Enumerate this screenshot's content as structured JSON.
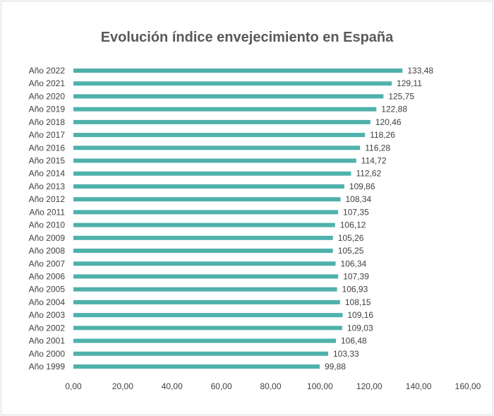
{
  "chart_data": {
    "type": "bar",
    "orientation": "horizontal",
    "title": "Evolución índice envejecimiento en España",
    "categories": [
      "Año 1999",
      "Año 2000",
      "Año 2001",
      "Año 2002",
      "Año 2003",
      "Año 2004",
      "Año 2005",
      "Año 2006",
      "Año 2007",
      "Año 2008",
      "Año 2009",
      "Año 2010",
      "Año 2011",
      "Año 2012",
      "Año 2013",
      "Año 2014",
      "Año 2015",
      "Año 2016",
      "Año 2017",
      "Año 2018",
      "Año 2019",
      "Año 2020",
      "Año 2021",
      "Año 2022"
    ],
    "values": [
      99.88,
      103.33,
      106.48,
      109.03,
      109.16,
      108.15,
      106.93,
      107.39,
      106.34,
      105.25,
      105.26,
      106.12,
      107.35,
      108.34,
      109.86,
      112.62,
      114.72,
      116.28,
      118.26,
      120.46,
      122.88,
      125.75,
      129.11,
      133.48
    ],
    "data_labels": [
      "99,88",
      "103,33",
      "106,48",
      "109,03",
      "109,16",
      "108,15",
      "106,93",
      "107,39",
      "106,34",
      "105,25",
      "105,26",
      "106,12",
      "107,35",
      "108,34",
      "109,86",
      "112,62",
      "114,72",
      "116,28",
      "118,26",
      "120,46",
      "122,88",
      "125,75",
      "129,11",
      "133,48"
    ],
    "xlim": [
      0,
      160
    ],
    "xticks": [
      0,
      20,
      40,
      60,
      80,
      100,
      120,
      140,
      160
    ],
    "xtick_labels": [
      "0,00",
      "20,00",
      "40,00",
      "60,00",
      "80,00",
      "100,00",
      "120,00",
      "140,00",
      "160,00"
    ],
    "grid": false,
    "legend": "none",
    "bar_color": "#4fb1ab"
  }
}
